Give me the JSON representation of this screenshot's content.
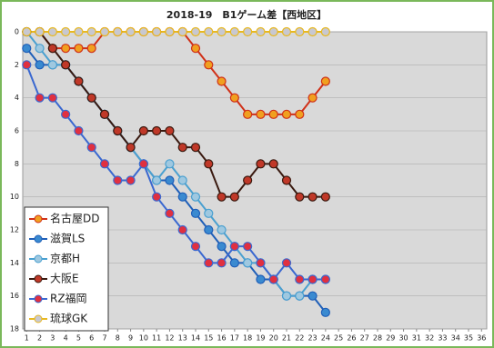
{
  "chart_data": {
    "type": "line",
    "title": "2018-19　B1ゲーム差【西地区】",
    "x": [
      1,
      2,
      3,
      4,
      5,
      6,
      7,
      8,
      9,
      10,
      11,
      12,
      13,
      14,
      15,
      16,
      17,
      18,
      19,
      20,
      21,
      22,
      23,
      24
    ],
    "series": [
      {
        "name": "名古屋DD",
        "color": "#d03018",
        "marker": "#f0a020",
        "values": [
          0,
          0,
          1,
          1,
          1,
          1,
          0,
          0,
          0,
          0,
          0,
          0,
          0,
          1,
          2,
          3,
          4,
          5,
          5,
          5,
          5,
          5,
          4,
          3
        ]
      },
      {
        "name": "滋賀LS",
        "color": "#1f5fb8",
        "marker": "#3a8ad0",
        "values": [
          1,
          2,
          2,
          2,
          3,
          4,
          5,
          6,
          7,
          8,
          9,
          9,
          10,
          11,
          12,
          13,
          14,
          14,
          15,
          15,
          16,
          16,
          16,
          17
        ]
      },
      {
        "name": "京都H",
        "color": "#4aa0d0",
        "marker": "#9fc8e0",
        "values": [
          0,
          1,
          2,
          2,
          3,
          4,
          5,
          6,
          7,
          8,
          9,
          8,
          9,
          10,
          11,
          12,
          13,
          14,
          14,
          15,
          16,
          16,
          15,
          15
        ]
      },
      {
        "name": "大阪E",
        "color": "#3a1a10",
        "marker": "#c03828",
        "values": [
          0,
          0,
          1,
          2,
          3,
          4,
          5,
          6,
          7,
          6,
          6,
          6,
          7,
          7,
          8,
          10,
          10,
          9,
          8,
          8,
          9,
          10,
          10,
          10
        ]
      },
      {
        "name": "RZ福岡",
        "color": "#3a68d0",
        "marker": "#e03040",
        "values": [
          2,
          4,
          4,
          5,
          6,
          7,
          8,
          9,
          9,
          8,
          10,
          11,
          12,
          13,
          14,
          14,
          13,
          13,
          14,
          15,
          14,
          15,
          15,
          15
        ]
      },
      {
        "name": "琉球GK",
        "color": "#e8b820",
        "marker": "#c8c8d0",
        "values": [
          0,
          0,
          0,
          0,
          0,
          0,
          0,
          0,
          0,
          0,
          0,
          0,
          0,
          0,
          0,
          0,
          0,
          0,
          0,
          0,
          0,
          0,
          0,
          0
        ]
      }
    ],
    "xlim": [
      0.7,
      36.4
    ],
    "xticks": [
      1,
      2,
      3,
      4,
      5,
      6,
      7,
      8,
      9,
      10,
      11,
      12,
      13,
      14,
      15,
      16,
      17,
      18,
      19,
      20,
      21,
      22,
      23,
      24,
      25,
      26,
      27,
      28,
      29,
      30,
      31,
      32,
      33,
      34,
      35,
      36
    ],
    "ylim": [
      0,
      18
    ],
    "y_inverted": true,
    "yticks": [
      0,
      2,
      4,
      6,
      8,
      10,
      12,
      14,
      16,
      18
    ],
    "grid": true
  }
}
